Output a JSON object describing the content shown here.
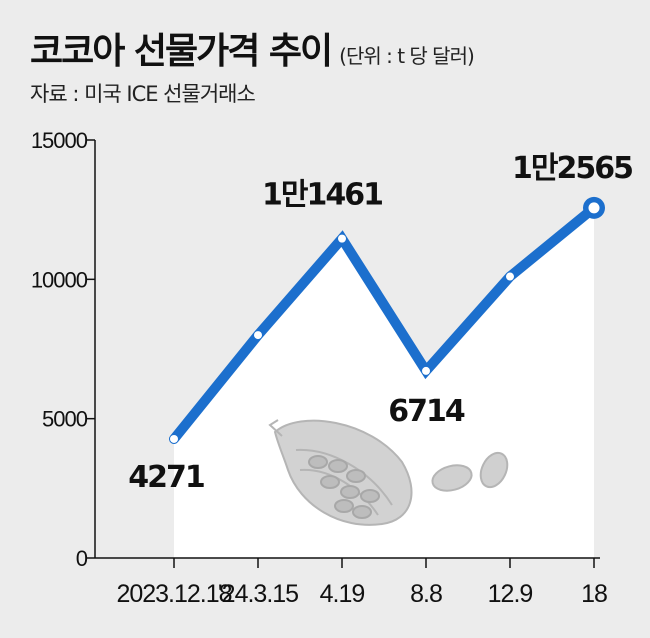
{
  "header": {
    "title": "코코아 선물가격 추이",
    "unit": "(단위 : t 당 달러)",
    "source": "자료 : 미국 ICE 선물거래소"
  },
  "colors": {
    "line": "#1c6fcd",
    "background": "#ececec",
    "area": "#ffffff",
    "axis": "#111111",
    "illustration": "#b5b5b5"
  },
  "illustration": "cocoa-pod-and-beans",
  "chart_data": {
    "type": "line",
    "title": "코코아 선물가격 추이",
    "xlabel": "",
    "ylabel": "",
    "ylim": [
      0,
      15000
    ],
    "yticks": [
      0,
      5000,
      10000,
      15000
    ],
    "ytick_labels": [
      "0",
      "5000",
      "10000",
      "15000"
    ],
    "x": [
      "2023.12.18",
      "'24.3.15",
      "4.19",
      "8.8",
      "12.9",
      "18"
    ],
    "xtick_labels": [
      "2023.12.18",
      "'24.3.15",
      "4.19",
      "8.8",
      "12.9",
      "18"
    ],
    "series": [
      {
        "name": "",
        "values": [
          4271,
          8000,
          11461,
          6714,
          10100,
          12565
        ],
        "data_labels": [
          "4271",
          "",
          "1만1461",
          "6714",
          "",
          "1만2565"
        ]
      }
    ],
    "grid": false,
    "legend": "none"
  }
}
